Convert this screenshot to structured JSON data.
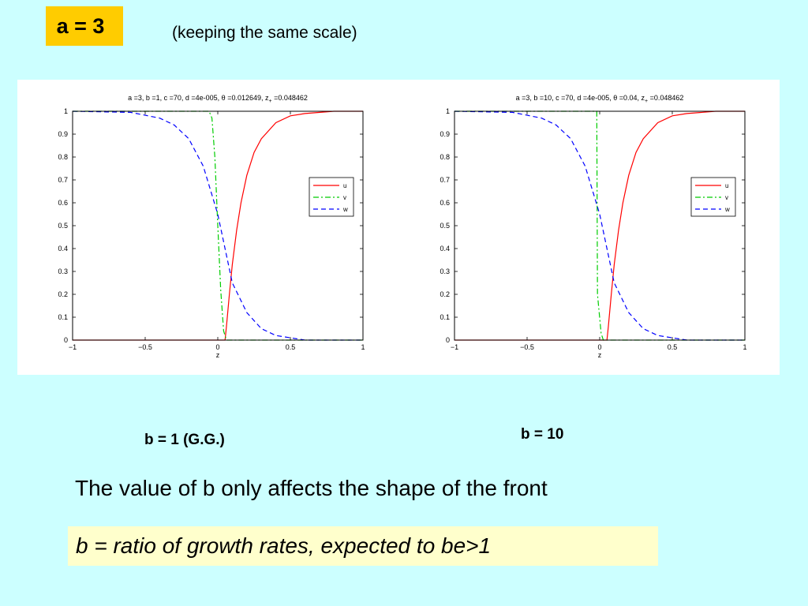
{
  "header": {
    "badge": "a = 3",
    "subtitle": "(keeping the same scale)"
  },
  "captions": {
    "left": "b = 1 (G.G.)",
    "right": "b = 10"
  },
  "statement": "The value of b only affects the shape of the front",
  "note": "b = ratio of growth rates, expected to be>1",
  "chart_data": [
    {
      "type": "line",
      "title": "a =3, b =1, c =70, d =4e-005, θ =0.012649, z",
      "title_sub": "+",
      "title_tail": " =0.048462",
      "xlabel": "z",
      "ylabel": "",
      "xlim": [
        -1,
        1
      ],
      "ylim": [
        0,
        1
      ],
      "xticks": [
        -1,
        -0.5,
        0,
        0.5,
        1
      ],
      "xtick_labels": [
        "−1",
        "−0.5",
        "0",
        "0.5",
        "1"
      ],
      "yticks": [
        0,
        0.1,
        0.2,
        0.3,
        0.4,
        0.5,
        0.6,
        0.7,
        0.8,
        0.9,
        1
      ],
      "ytick_labels": [
        "0",
        "0.1",
        "0.2",
        "0.3",
        "0.4",
        "0.5",
        "0.6",
        "0.7",
        "0.8",
        "0.9",
        "1"
      ],
      "grid": false,
      "legend_position": "right",
      "series": [
        {
          "name": "u",
          "color": "#ff0000",
          "style": "solid",
          "x": [
            -1,
            0.05,
            0.06,
            0.08,
            0.1,
            0.13,
            0.16,
            0.2,
            0.25,
            0.3,
            0.4,
            0.5,
            0.6,
            0.8,
            1
          ],
          "y": [
            0,
            0,
            0.06,
            0.2,
            0.33,
            0.48,
            0.6,
            0.72,
            0.82,
            0.88,
            0.95,
            0.98,
            0.99,
            1,
            1
          ]
        },
        {
          "name": "v",
          "color": "#00cc00",
          "style": "dashdot",
          "x": [
            -1,
            -0.06,
            -0.04,
            -0.02,
            0,
            0.02,
            0.04,
            0.06,
            1
          ],
          "y": [
            1,
            1,
            0.97,
            0.8,
            0.5,
            0.22,
            0.04,
            0,
            0
          ]
        },
        {
          "name": "w",
          "color": "#0000ff",
          "style": "dashed",
          "x": [
            -1,
            -0.6,
            -0.4,
            -0.3,
            -0.2,
            -0.1,
            0,
            0.1,
            0.2,
            0.3,
            0.4,
            0.5,
            0.6,
            1
          ],
          "y": [
            1,
            0.995,
            0.97,
            0.94,
            0.88,
            0.76,
            0.55,
            0.25,
            0.12,
            0.05,
            0.02,
            0.01,
            0,
            0
          ]
        }
      ]
    },
    {
      "type": "line",
      "title": "a =3, b =10, c =70, d =4e-005, θ =0.04, z",
      "title_sub": "+",
      "title_tail": " =0.048462",
      "xlabel": "z",
      "ylabel": "",
      "xlim": [
        -1,
        1
      ],
      "ylim": [
        0,
        1
      ],
      "xticks": [
        -1,
        -0.5,
        0,
        0.5,
        1
      ],
      "xtick_labels": [
        "−1",
        "−0.5",
        "0",
        "0.5",
        "1"
      ],
      "yticks": [
        0,
        0.1,
        0.2,
        0.3,
        0.4,
        0.5,
        0.6,
        0.7,
        0.8,
        0.9,
        1
      ],
      "ytick_labels": [
        "0",
        "0.1",
        "0.2",
        "0.3",
        "0.4",
        "0.5",
        "0.6",
        "0.7",
        "0.8",
        "0.9",
        "1"
      ],
      "grid": false,
      "legend_position": "right",
      "series": [
        {
          "name": "u",
          "color": "#ff0000",
          "style": "solid",
          "x": [
            -1,
            0.05,
            0.06,
            0.08,
            0.1,
            0.13,
            0.16,
            0.2,
            0.25,
            0.3,
            0.4,
            0.5,
            0.6,
            0.8,
            1
          ],
          "y": [
            0,
            0,
            0.06,
            0.2,
            0.33,
            0.48,
            0.6,
            0.72,
            0.82,
            0.88,
            0.95,
            0.98,
            0.99,
            1,
            1
          ]
        },
        {
          "name": "v",
          "color": "#00cc00",
          "style": "dashdot",
          "x": [
            -1,
            -0.02,
            -0.015,
            0.01,
            0.025,
            1
          ],
          "y": [
            1,
            1,
            0.2,
            0.03,
            0,
            0
          ]
        },
        {
          "name": "w",
          "color": "#0000ff",
          "style": "dashed",
          "x": [
            -1,
            -0.6,
            -0.4,
            -0.3,
            -0.2,
            -0.1,
            0,
            0.1,
            0.2,
            0.3,
            0.4,
            0.5,
            0.6,
            1
          ],
          "y": [
            1,
            0.995,
            0.97,
            0.94,
            0.88,
            0.76,
            0.55,
            0.25,
            0.12,
            0.05,
            0.02,
            0.01,
            0,
            0
          ]
        }
      ]
    }
  ]
}
